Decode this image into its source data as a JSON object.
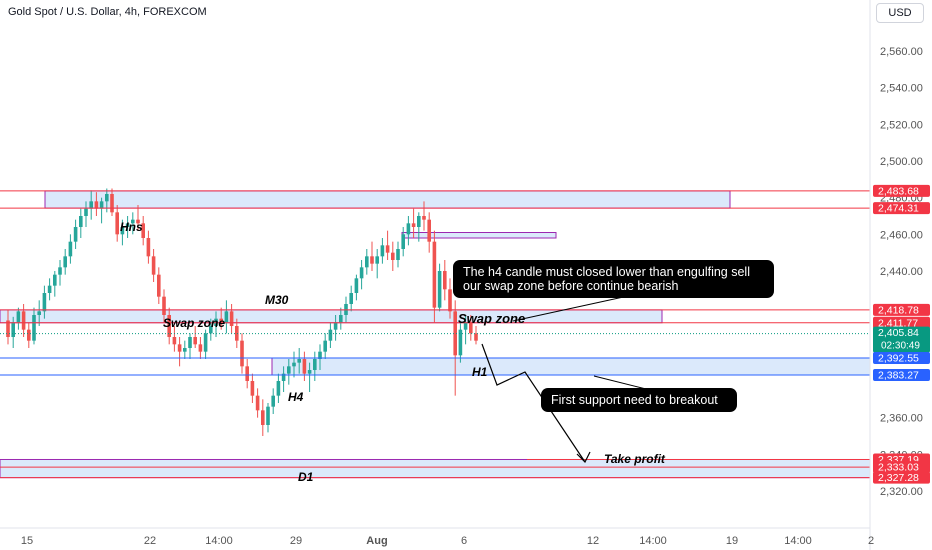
{
  "header": {
    "title": "Gold Spot / U.S. Dollar, 4h, FOREXCOM",
    "currency_button": "USD"
  },
  "colors": {
    "up": "#26a69a",
    "down": "#ef5350",
    "zone_fill": "#dbe9fb",
    "zone_border": "#9c27b0",
    "red_line": "#f23645",
    "blue_line": "#2962ff",
    "last_price": "#089981",
    "axis_text": "#555555"
  },
  "chart_data": {
    "type": "candlestick",
    "title": "Gold Spot / U.S. Dollar, 4h, FOREXCOM",
    "ylim": [
      2318,
      2575
    ],
    "y_ticks": [
      "2,560.00",
      "2,540.00",
      "2,520.00",
      "2,500.00",
      "2,480.00",
      "2,460.00",
      "2,440.00",
      "2,360.00",
      "2,340.00",
      "2,320.00"
    ],
    "x_ticks": [
      "15",
      "22",
      "14:00",
      "29",
      "Aug",
      "6",
      "12",
      "14:00",
      "19",
      "14:00",
      "2"
    ],
    "grid": false,
    "candles": [
      [
        2413,
        2419,
        2400,
        2404
      ],
      [
        2404,
        2415,
        2398,
        2412
      ],
      [
        2412,
        2420,
        2408,
        2418
      ],
      [
        2418,
        2422,
        2404,
        2408
      ],
      [
        2408,
        2412,
        2398,
        2402
      ],
      [
        2402,
        2420,
        2400,
        2416
      ],
      [
        2416,
        2424,
        2410,
        2418
      ],
      [
        2418,
        2432,
        2414,
        2428
      ],
      [
        2428,
        2436,
        2424,
        2432
      ],
      [
        2432,
        2440,
        2426,
        2438
      ],
      [
        2438,
        2446,
        2432,
        2442
      ],
      [
        2442,
        2452,
        2438,
        2448
      ],
      [
        2448,
        2460,
        2444,
        2456
      ],
      [
        2456,
        2468,
        2452,
        2464
      ],
      [
        2464,
        2474,
        2458,
        2470
      ],
      [
        2470,
        2478,
        2464,
        2474
      ],
      [
        2474,
        2484,
        2468,
        2478
      ],
      [
        2478,
        2483,
        2470,
        2474
      ],
      [
        2474,
        2480,
        2466,
        2478
      ],
      [
        2478,
        2485,
        2472,
        2482
      ],
      [
        2482,
        2485,
        2470,
        2472
      ],
      [
        2472,
        2476,
        2456,
        2460
      ],
      [
        2460,
        2468,
        2454,
        2464
      ],
      [
        2464,
        2470,
        2458,
        2466
      ],
      [
        2466,
        2472,
        2460,
        2468
      ],
      [
        2468,
        2476,
        2462,
        2466
      ],
      [
        2466,
        2470,
        2454,
        2458
      ],
      [
        2458,
        2462,
        2444,
        2448
      ],
      [
        2448,
        2452,
        2434,
        2438
      ],
      [
        2438,
        2442,
        2422,
        2426
      ],
      [
        2426,
        2430,
        2412,
        2416
      ],
      [
        2416,
        2420,
        2400,
        2404
      ],
      [
        2404,
        2410,
        2396,
        2400
      ],
      [
        2400,
        2404,
        2388,
        2396
      ],
      [
        2396,
        2402,
        2392,
        2398
      ],
      [
        2398,
        2406,
        2392,
        2404
      ],
      [
        2404,
        2410,
        2398,
        2400
      ],
      [
        2400,
        2404,
        2392,
        2396
      ],
      [
        2396,
        2408,
        2392,
        2406
      ],
      [
        2406,
        2414,
        2402,
        2410
      ],
      [
        2410,
        2418,
        2404,
        2414
      ],
      [
        2414,
        2420,
        2408,
        2412
      ],
      [
        2412,
        2424,
        2406,
        2418
      ],
      [
        2418,
        2422,
        2406,
        2410
      ],
      [
        2410,
        2414,
        2398,
        2402
      ],
      [
        2402,
        2406,
        2384,
        2388
      ],
      [
        2388,
        2392,
        2376,
        2380
      ],
      [
        2380,
        2384,
        2368,
        2372
      ],
      [
        2372,
        2376,
        2360,
        2364
      ],
      [
        2364,
        2370,
        2350,
        2356
      ],
      [
        2356,
        2368,
        2352,
        2366
      ],
      [
        2366,
        2376,
        2362,
        2372
      ],
      [
        2372,
        2384,
        2368,
        2380
      ],
      [
        2380,
        2388,
        2374,
        2384
      ],
      [
        2384,
        2392,
        2378,
        2388
      ],
      [
        2388,
        2396,
        2382,
        2390
      ],
      [
        2390,
        2398,
        2384,
        2392
      ],
      [
        2392,
        2396,
        2380,
        2384
      ],
      [
        2384,
        2390,
        2374,
        2386
      ],
      [
        2386,
        2396,
        2380,
        2392
      ],
      [
        2392,
        2400,
        2386,
        2396
      ],
      [
        2396,
        2406,
        2392,
        2402
      ],
      [
        2402,
        2412,
        2398,
        2408
      ],
      [
        2408,
        2416,
        2402,
        2412
      ],
      [
        2412,
        2420,
        2408,
        2416
      ],
      [
        2416,
        2426,
        2412,
        2422
      ],
      [
        2422,
        2432,
        2418,
        2428
      ],
      [
        2428,
        2438,
        2424,
        2436
      ],
      [
        2436,
        2446,
        2430,
        2442
      ],
      [
        2442,
        2452,
        2438,
        2448
      ],
      [
        2448,
        2456,
        2440,
        2444
      ],
      [
        2444,
        2452,
        2436,
        2448
      ],
      [
        2448,
        2458,
        2444,
        2454
      ],
      [
        2454,
        2462,
        2446,
        2450
      ],
      [
        2450,
        2456,
        2440,
        2446
      ],
      [
        2446,
        2456,
        2442,
        2452
      ],
      [
        2452,
        2464,
        2448,
        2460
      ],
      [
        2460,
        2470,
        2454,
        2466
      ],
      [
        2466,
        2474,
        2458,
        2464
      ],
      [
        2464,
        2472,
        2456,
        2470
      ],
      [
        2470,
        2478,
        2462,
        2468
      ],
      [
        2468,
        2472,
        2450,
        2456
      ],
      [
        2456,
        2462,
        2412,
        2420
      ],
      [
        2420,
        2444,
        2418,
        2440
      ],
      [
        2440,
        2446,
        2424,
        2430
      ],
      [
        2430,
        2436,
        2414,
        2418
      ],
      [
        2418,
        2424,
        2372,
        2394
      ],
      [
        2394,
        2412,
        2390,
        2408
      ],
      [
        2408,
        2416,
        2400,
        2412
      ],
      [
        2412,
        2416,
        2402,
        2406
      ],
      [
        2406,
        2410,
        2400,
        2402
      ]
    ],
    "zones": [
      {
        "name": "Hns",
        "top": 2483.68,
        "bottom": 2474.31
      },
      {
        "name": "Swap zone",
        "top": 2418.78,
        "bottom": 2411.77
      },
      {
        "name": "H1",
        "top": 2392.55,
        "bottom": 2383.27
      },
      {
        "name": "D1",
        "top": 2337.19,
        "bottom": 2327.28
      }
    ],
    "annotations": [
      "Hns",
      "M30",
      "Swap zone",
      "Swap zone",
      "H4",
      "H1",
      "D1",
      "Take profit",
      "The h4 candle must closed lower than engulfing sell our swap zone before continue bearish",
      "First support need to breakout"
    ],
    "price_labels": [
      {
        "text": "2,483.68",
        "value": 2483.68,
        "color": "#f23645"
      },
      {
        "text": "2,474.31",
        "value": 2474.31,
        "color": "#f23645"
      },
      {
        "text": "2,418.78",
        "value": 2418.78,
        "color": "#f23645"
      },
      {
        "text": "2,411.77",
        "value": 2411.77,
        "color": "#f23645"
      },
      {
        "text": "2,405.84",
        "value": 2405.84,
        "color": "#089981",
        "sub": "02:30:49"
      },
      {
        "text": "2,392.55",
        "value": 2392.55,
        "color": "#2962ff"
      },
      {
        "text": "2,383.27",
        "value": 2383.27,
        "color": "#2962ff"
      },
      {
        "text": "2,337.19",
        "value": 2337.19,
        "color": "#f23645"
      },
      {
        "text": "2,333.03",
        "value": 2333.03,
        "color": "#f23645"
      },
      {
        "text": "2,327.28",
        "value": 2327.28,
        "color": "#f23645"
      }
    ]
  },
  "labels": {
    "hns": "Hns",
    "m30": "M30",
    "swap_zone_left": "Swap zone",
    "swap_zone_right": "Swap zone",
    "h4": "H4",
    "h1": "H1",
    "d1": "D1",
    "take_profit": "Take profit",
    "note_engulf": "The h4 candle must closed lower than engulfing sell our swap zone before continue bearish",
    "note_support": "First support need to breakout"
  }
}
